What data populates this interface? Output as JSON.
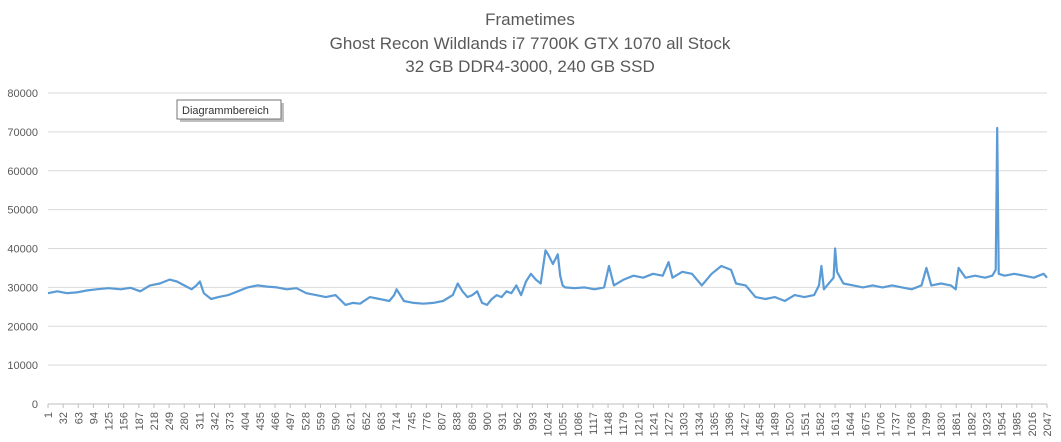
{
  "tooltip": "Diagrammbereich",
  "colors": {
    "series": "#5b9bd5",
    "grid": "#d9d9d9",
    "text": "#595959"
  },
  "chart_data": {
    "type": "line",
    "title": [
      "Frametimes",
      "Ghost Recon Wildlands i7 7700K GTX 1070 all Stock",
      "32 GB DDR4-3000, 240 GB SSD"
    ],
    "xlabel": "",
    "ylabel": "",
    "ylim": [
      0,
      80000
    ],
    "yticks": [
      0,
      10000,
      20000,
      30000,
      40000,
      50000,
      60000,
      70000,
      80000
    ],
    "xlim": [
      1,
      2047
    ],
    "xticks": [
      1,
      32,
      63,
      94,
      125,
      156,
      187,
      218,
      249,
      280,
      311,
      342,
      373,
      404,
      435,
      466,
      497,
      528,
      559,
      590,
      621,
      652,
      683,
      714,
      745,
      776,
      807,
      838,
      869,
      900,
      931,
      962,
      993,
      1024,
      1055,
      1086,
      1117,
      1148,
      1179,
      1210,
      1241,
      1272,
      1303,
      1334,
      1365,
      1396,
      1427,
      1458,
      1489,
      1520,
      1551,
      1582,
      1613,
      1644,
      1675,
      1706,
      1737,
      1768,
      1799,
      1830,
      1861,
      1892,
      1923,
      1954,
      1985,
      2016,
      2047
    ],
    "grid": true,
    "legend": "none",
    "series": [
      {
        "x": [
          1,
          20,
          40,
          60,
          80,
          100,
          125,
          150,
          170,
          190,
          210,
          230,
          250,
          265,
          280,
          295,
          305,
          312,
          320,
          335,
          350,
          370,
          390,
          410,
          430,
          450,
          470,
          490,
          510,
          530,
          550,
          570,
          590,
          610,
          625,
          640,
          660,
          680,
          700,
          710,
          715,
          730,
          750,
          770,
          790,
          810,
          830,
          840,
          850,
          860,
          870,
          880,
          890,
          900,
          910,
          920,
          930,
          940,
          950,
          960,
          970,
          980,
          990,
          1000,
          1010,
          1020,
          1025,
          1035,
          1045,
          1050,
          1055,
          1060,
          1080,
          1100,
          1120,
          1140,
          1150,
          1160,
          1180,
          1200,
          1220,
          1240,
          1260,
          1272,
          1280,
          1300,
          1320,
          1340,
          1360,
          1380,
          1400,
          1410,
          1430,
          1450,
          1470,
          1490,
          1510,
          1530,
          1550,
          1570,
          1580,
          1585,
          1590,
          1610,
          1613,
          1617,
          1630,
          1650,
          1670,
          1690,
          1710,
          1730,
          1750,
          1770,
          1790,
          1800,
          1810,
          1830,
          1850,
          1860,
          1866,
          1880,
          1900,
          1920,
          1935,
          1942,
          1945,
          1948,
          1960,
          1980,
          2000,
          2020,
          2030,
          2040,
          2047
        ],
        "y": [
          28500,
          29000,
          28500,
          28700,
          29200,
          29500,
          29800,
          29500,
          29900,
          29000,
          30500,
          31000,
          32000,
          31500,
          30500,
          29500,
          30500,
          31500,
          28500,
          27000,
          27500,
          28000,
          29000,
          30000,
          30500,
          30200,
          30000,
          29500,
          29800,
          28500,
          28000,
          27500,
          28000,
          25500,
          26000,
          25800,
          27500,
          27000,
          26500,
          28000,
          29500,
          26500,
          26000,
          25800,
          26000,
          26500,
          28000,
          31000,
          29000,
          27500,
          28000,
          29000,
          26000,
          25500,
          27000,
          28000,
          27500,
          29000,
          28500,
          30500,
          28000,
          31500,
          33500,
          32000,
          31000,
          39500,
          38500,
          36000,
          38500,
          33000,
          30500,
          30000,
          29800,
          30000,
          29500,
          30000,
          35500,
          30500,
          32000,
          33000,
          32500,
          33500,
          33000,
          36500,
          32500,
          34000,
          33500,
          30500,
          33500,
          35500,
          34500,
          31000,
          30500,
          27500,
          27000,
          27500,
          26500,
          28000,
          27500,
          28000,
          30500,
          35500,
          29500,
          32500,
          40000,
          34000,
          31000,
          30500,
          30000,
          30500,
          30000,
          30500,
          30000,
          29500,
          30500,
          35000,
          30500,
          31000,
          30500,
          29500,
          35000,
          32500,
          33000,
          32500,
          33000,
          34500,
          71000,
          33500,
          33000,
          33500,
          33000,
          32500,
          33000,
          33500,
          32500
        ]
      }
    ]
  }
}
